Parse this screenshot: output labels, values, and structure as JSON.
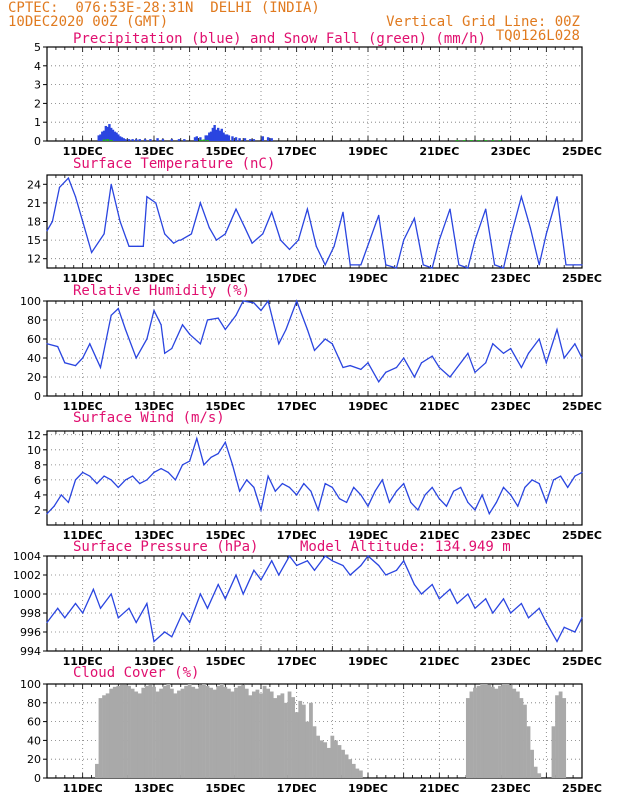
{
  "header": {
    "line1_left": "CPTEC:  076:53E-28:31N  DELHI (INDIA)",
    "line2_left": "10DEC2020 00Z (GMT)",
    "line2_right": "Vertical Grid Line: 00Z",
    "line3_right": "TQ0126L028"
  },
  "colors": {
    "header": "#e07a1f",
    "title": "#e0106f",
    "line": "#2a45e0",
    "snow": "#22aa22",
    "cloud": "#a9a9a9"
  },
  "chart_data": [
    {
      "type": "bar",
      "title": "Precipitation (blue) and Snow Fall (green) (mm/h)",
      "x_tick_labels": [
        "11DEC",
        "13DEC",
        "15DEC",
        "17DEC",
        "19DEC",
        "21DEC",
        "23DEC",
        "25DEC"
      ],
      "x_range_days": [
        0,
        15
      ],
      "ylim": [
        0,
        5
      ],
      "y_ticks": [
        0,
        1,
        2,
        3,
        4,
        5
      ],
      "grid": true,
      "series": [
        {
          "name": "Precipitation",
          "color": "blue",
          "x": [
            1.45,
            1.5,
            1.55,
            1.6,
            1.65,
            1.7,
            1.75,
            1.8,
            1.85,
            1.9,
            1.95,
            2.0,
            2.05,
            2.1,
            2.15,
            2.2,
            2.3,
            2.4,
            2.5,
            2.6,
            2.75,
            2.9,
            3.1,
            3.25,
            3.5,
            3.7,
            3.85,
            4.15,
            4.2,
            4.3,
            4.45,
            4.5,
            4.55,
            4.6,
            4.65,
            4.7,
            4.75,
            4.8,
            4.85,
            4.9,
            4.95,
            5.0,
            5.05,
            5.1,
            5.2,
            5.3,
            5.4,
            5.55,
            5.7,
            5.8,
            6.05,
            6.2,
            6.3
          ],
          "values": [
            0.3,
            0.35,
            0.5,
            0.55,
            0.8,
            0.75,
            0.9,
            0.7,
            0.6,
            0.5,
            0.45,
            0.35,
            0.25,
            0.2,
            0.15,
            0.1,
            0.1,
            0.1,
            0.1,
            0.1,
            0.1,
            0.1,
            0.15,
            0.1,
            0.1,
            0.1,
            0.1,
            0.2,
            0.25,
            0.2,
            0.3,
            0.3,
            0.45,
            0.5,
            0.7,
            0.85,
            0.6,
            0.7,
            0.55,
            0.65,
            0.45,
            0.35,
            0.35,
            0.3,
            0.25,
            0.2,
            0.15,
            0.15,
            0.1,
            0.1,
            0.25,
            0.2,
            0.15
          ]
        },
        {
          "name": "Snow Fall",
          "color": "green",
          "x": [
            1.6,
            1.7,
            1.8,
            4.3,
            4.4,
            4.5,
            11.5,
            11.7,
            11.9,
            12.1,
            12.3,
            12.5,
            12.7
          ],
          "values": [
            0.08,
            0.1,
            0.06,
            0.06,
            0.08,
            0.05,
            0.05,
            0.05,
            0.05,
            0.05,
            0.05,
            0.05,
            0.05
          ]
        }
      ]
    },
    {
      "type": "line",
      "title": "Surface Temperature (nC)",
      "x_tick_labels": [
        "11DEC",
        "13DEC",
        "15DEC",
        "17DEC",
        "19DEC",
        "21DEC",
        "23DEC",
        "25DEC"
      ],
      "x_range_days": [
        0,
        15
      ],
      "ylim": [
        10.5,
        25.5
      ],
      "y_ticks": [
        12,
        15,
        18,
        21,
        24
      ],
      "grid": true,
      "series": [
        {
          "name": "Surface Temperature",
          "x": [
            0,
            0.15,
            0.35,
            0.6,
            0.8,
            1.05,
            1.25,
            1.6,
            1.8,
            2.05,
            2.3,
            2.55,
            2.7,
            2.8,
            3.05,
            3.3,
            3.55,
            3.7,
            3.75,
            4.05,
            4.3,
            4.55,
            4.75,
            5.0,
            5.3,
            5.55,
            5.75,
            6.05,
            6.3,
            6.55,
            6.8,
            7.05,
            7.3,
            7.55,
            7.8,
            8.05,
            8.3,
            8.5,
            8.8,
            9.05,
            9.3,
            9.5,
            9.8,
            10.0,
            10.3,
            10.55,
            10.8,
            11.0,
            11.3,
            11.55,
            11.8,
            12.0,
            12.3,
            12.55,
            12.8,
            13.0,
            13.3,
            13.55,
            13.8,
            14.0,
            14.3,
            14.55,
            14.8,
            15.0
          ],
          "values": [
            16.5,
            18,
            23.5,
            25,
            22,
            17,
            13,
            16,
            24,
            18,
            14,
            14,
            14,
            22,
            21,
            16,
            14.5,
            15,
            15,
            16,
            21,
            17,
            15,
            16,
            20,
            17,
            14.5,
            16,
            19.5,
            15,
            13.5,
            15,
            20,
            14,
            11,
            14,
            19.5,
            11,
            11,
            15,
            19,
            11,
            10.5,
            15,
            18.5,
            11,
            10.5,
            15,
            20,
            11,
            10.5,
            15,
            20,
            11,
            10.5,
            15.5,
            22,
            17,
            11,
            16,
            22,
            11,
            11,
            11
          ]
        }
      ]
    },
    {
      "type": "line",
      "title": "Relative Humidity (%)",
      "x_tick_labels": [
        "11DEC",
        "13DEC",
        "15DEC",
        "17DEC",
        "19DEC",
        "21DEC",
        "23DEC",
        "25DEC"
      ],
      "x_range_days": [
        0,
        15
      ],
      "ylim": [
        0,
        100
      ],
      "y_ticks": [
        0,
        20,
        40,
        60,
        80,
        100
      ],
      "grid": true,
      "series": [
        {
          "name": "Relative Humidity",
          "x": [
            0,
            0.3,
            0.5,
            0.8,
            1.0,
            1.2,
            1.5,
            1.8,
            2.0,
            2.2,
            2.5,
            2.8,
            3.0,
            3.2,
            3.3,
            3.5,
            3.8,
            4.0,
            4.3,
            4.5,
            4.8,
            5.0,
            5.3,
            5.5,
            5.8,
            6.0,
            6.2,
            6.5,
            6.7,
            7.0,
            7.3,
            7.5,
            7.8,
            8.0,
            8.3,
            8.5,
            8.8,
            9.0,
            9.3,
            9.5,
            9.8,
            10.0,
            10.3,
            10.5,
            10.8,
            11.0,
            11.3,
            11.5,
            11.8,
            12.0,
            12.3,
            12.5,
            12.8,
            13.0,
            13.3,
            13.5,
            13.8,
            14.0,
            14.3,
            14.5,
            14.8,
            15.0
          ],
          "values": [
            55,
            52,
            35,
            32,
            40,
            55,
            30,
            85,
            92,
            70,
            40,
            60,
            90,
            75,
            45,
            50,
            75,
            65,
            55,
            80,
            82,
            70,
            85,
            100,
            98,
            90,
            100,
            55,
            70,
            100,
            70,
            48,
            60,
            55,
            30,
            32,
            28,
            35,
            15,
            25,
            30,
            40,
            20,
            35,
            42,
            30,
            20,
            30,
            45,
            25,
            35,
            55,
            45,
            50,
            30,
            45,
            60,
            35,
            70,
            40,
            55,
            40
          ]
        }
      ]
    },
    {
      "type": "line",
      "title": "Surface Wind (m/s)",
      "x_tick_labels": [
        "11DEC",
        "13DEC",
        "15DEC",
        "17DEC",
        "19DEC",
        "21DEC",
        "23DEC",
        "25DEC"
      ],
      "x_range_days": [
        0,
        15
      ],
      "ylim": [
        0,
        12.5
      ],
      "y_ticks": [
        2,
        4,
        6,
        8,
        10,
        12
      ],
      "grid": true,
      "series": [
        {
          "name": "Surface Wind Speed",
          "x": [
            0,
            0.2,
            0.4,
            0.6,
            0.8,
            1.0,
            1.2,
            1.4,
            1.6,
            1.8,
            2.0,
            2.2,
            2.4,
            2.6,
            2.8,
            3.0,
            3.2,
            3.4,
            3.6,
            3.8,
            4.0,
            4.2,
            4.4,
            4.6,
            4.8,
            5.0,
            5.2,
            5.4,
            5.6,
            5.8,
            6.0,
            6.2,
            6.4,
            6.6,
            6.8,
            7.0,
            7.2,
            7.4,
            7.6,
            7.8,
            8.0,
            8.2,
            8.4,
            8.6,
            8.8,
            9.0,
            9.2,
            9.4,
            9.6,
            9.8,
            10.0,
            10.2,
            10.4,
            10.6,
            10.8,
            11.0,
            11.2,
            11.4,
            11.6,
            11.8,
            12.0,
            12.2,
            12.4,
            12.6,
            12.8,
            13.0,
            13.2,
            13.4,
            13.6,
            13.8,
            14.0,
            14.2,
            14.4,
            14.6,
            14.8,
            15.0
          ],
          "values": [
            1.5,
            2.5,
            4,
            3,
            6,
            7,
            6.5,
            5.5,
            6.5,
            6,
            5,
            6,
            6.5,
            5.5,
            6,
            7,
            7.5,
            7,
            6,
            8,
            8.5,
            11.5,
            8,
            9,
            9.5,
            11,
            8,
            4.5,
            6,
            5,
            2,
            6.5,
            4.5,
            5.5,
            5,
            4,
            5.5,
            4.5,
            2,
            5.5,
            5,
            3.5,
            3,
            5,
            4,
            2.5,
            4.5,
            6,
            3,
            4.5,
            5.5,
            3,
            2,
            4,
            5,
            3.5,
            2.5,
            4.5,
            5,
            3,
            2,
            4,
            1.5,
            3,
            5,
            4,
            2.5,
            5,
            6,
            5.5,
            3,
            6,
            6.5,
            5,
            6.5,
            7
          ]
        }
      ]
    },
    {
      "type": "line",
      "title": "Surface Pressure (hPa)",
      "annotation": "Model Altitude: 134.949 m",
      "x_tick_labels": [
        "11DEC",
        "13DEC",
        "15DEC",
        "17DEC",
        "19DEC",
        "21DEC",
        "23DEC",
        "25DEC"
      ],
      "x_range_days": [
        0,
        15
      ],
      "ylim": [
        994,
        1004
      ],
      "y_ticks": [
        994,
        996,
        998,
        1000,
        1002,
        1004
      ],
      "grid": true,
      "series": [
        {
          "name": "Surface Pressure",
          "x": [
            0,
            0.3,
            0.5,
            0.8,
            1.0,
            1.3,
            1.5,
            1.8,
            2.0,
            2.3,
            2.5,
            2.8,
            3.0,
            3.3,
            3.5,
            3.8,
            4.0,
            4.3,
            4.5,
            4.8,
            5.0,
            5.3,
            5.5,
            5.8,
            6.0,
            6.3,
            6.5,
            6.8,
            7.0,
            7.3,
            7.5,
            7.8,
            8.0,
            8.3,
            8.5,
            8.8,
            9.0,
            9.3,
            9.5,
            9.8,
            10.0,
            10.3,
            10.5,
            10.8,
            11.0,
            11.3,
            11.5,
            11.8,
            12.0,
            12.3,
            12.5,
            12.8,
            13.0,
            13.3,
            13.5,
            13.8,
            14.0,
            14.3,
            14.5,
            14.8,
            15.0
          ],
          "values": [
            997,
            998.5,
            997.5,
            999,
            998,
            1000.5,
            998.5,
            1000,
            997.5,
            998.5,
            997,
            999,
            995,
            996,
            995.5,
            998,
            997,
            1000,
            998.5,
            1001,
            999.5,
            1002,
            1000,
            1002.5,
            1001.5,
            1003.5,
            1002,
            1004,
            1003,
            1003.5,
            1002.5,
            1004,
            1003.5,
            1003,
            1002,
            1003,
            1004,
            1003,
            1002,
            1002.5,
            1003.5,
            1001,
            1000,
            1001,
            999.5,
            1000.5,
            999,
            1000,
            998.5,
            999.5,
            998,
            999.5,
            998,
            999,
            997.5,
            998.5,
            997,
            995,
            996.5,
            996,
            997.5
          ]
        }
      ]
    },
    {
      "type": "bar",
      "title": "Cloud Cover (%)",
      "x_tick_labels": [
        "11DEC",
        "13DEC",
        "15DEC",
        "17DEC",
        "19DEC",
        "21DEC",
        "23DEC",
        "25DEC"
      ],
      "x_range_days": [
        0,
        15
      ],
      "ylim": [
        0,
        100
      ],
      "y_ticks": [
        0,
        20,
        40,
        60,
        80,
        100
      ],
      "grid": true,
      "series": [
        {
          "name": "Cloud Cover",
          "color": "gray",
          "x": [
            1.4,
            1.5,
            1.6,
            1.7,
            1.8,
            1.9,
            2.0,
            2.1,
            2.2,
            2.3,
            2.4,
            2.5,
            2.6,
            2.7,
            2.8,
            2.9,
            3.0,
            3.1,
            3.2,
            3.3,
            3.4,
            3.5,
            3.6,
            3.7,
            3.8,
            3.9,
            4.0,
            4.1,
            4.2,
            4.3,
            4.4,
            4.5,
            4.6,
            4.7,
            4.8,
            4.9,
            5.0,
            5.1,
            5.2,
            5.3,
            5.4,
            5.5,
            5.6,
            5.7,
            5.8,
            5.9,
            6.0,
            6.1,
            6.2,
            6.3,
            6.4,
            6.5,
            6.6,
            6.7,
            6.8,
            6.9,
            7.0,
            7.1,
            7.2,
            7.3,
            7.4,
            7.5,
            7.6,
            7.7,
            7.8,
            7.9,
            8.0,
            8.1,
            8.2,
            8.3,
            8.4,
            8.5,
            8.6,
            8.7,
            8.8,
            11.8,
            11.9,
            12.0,
            12.1,
            12.2,
            12.3,
            12.4,
            12.5,
            12.6,
            12.7,
            12.8,
            12.9,
            13.0,
            13.1,
            13.2,
            13.3,
            13.4,
            13.5,
            13.6,
            13.7,
            13.8,
            14.2,
            14.3,
            14.4,
            14.5
          ],
          "values": [
            15,
            85,
            88,
            90,
            95,
            97,
            98,
            99,
            99,
            98,
            95,
            92,
            90,
            96,
            98,
            99,
            97,
            92,
            95,
            98,
            100,
            95,
            90,
            93,
            95,
            98,
            100,
            97,
            95,
            99,
            100,
            98,
            96,
            94,
            98,
            100,
            97,
            95,
            92,
            96,
            98,
            99,
            95,
            88,
            92,
            94,
            90,
            98,
            95,
            92,
            85,
            88,
            90,
            80,
            92,
            86,
            70,
            82,
            78,
            60,
            80,
            55,
            45,
            40,
            38,
            32,
            45,
            40,
            35,
            30,
            25,
            20,
            15,
            10,
            8,
            85,
            92,
            96,
            98,
            100,
            100,
            99,
            97,
            95,
            98,
            100,
            100,
            99,
            95,
            92,
            85,
            78,
            55,
            30,
            12,
            5,
            55,
            88,
            92,
            85
          ]
        }
      ]
    }
  ]
}
